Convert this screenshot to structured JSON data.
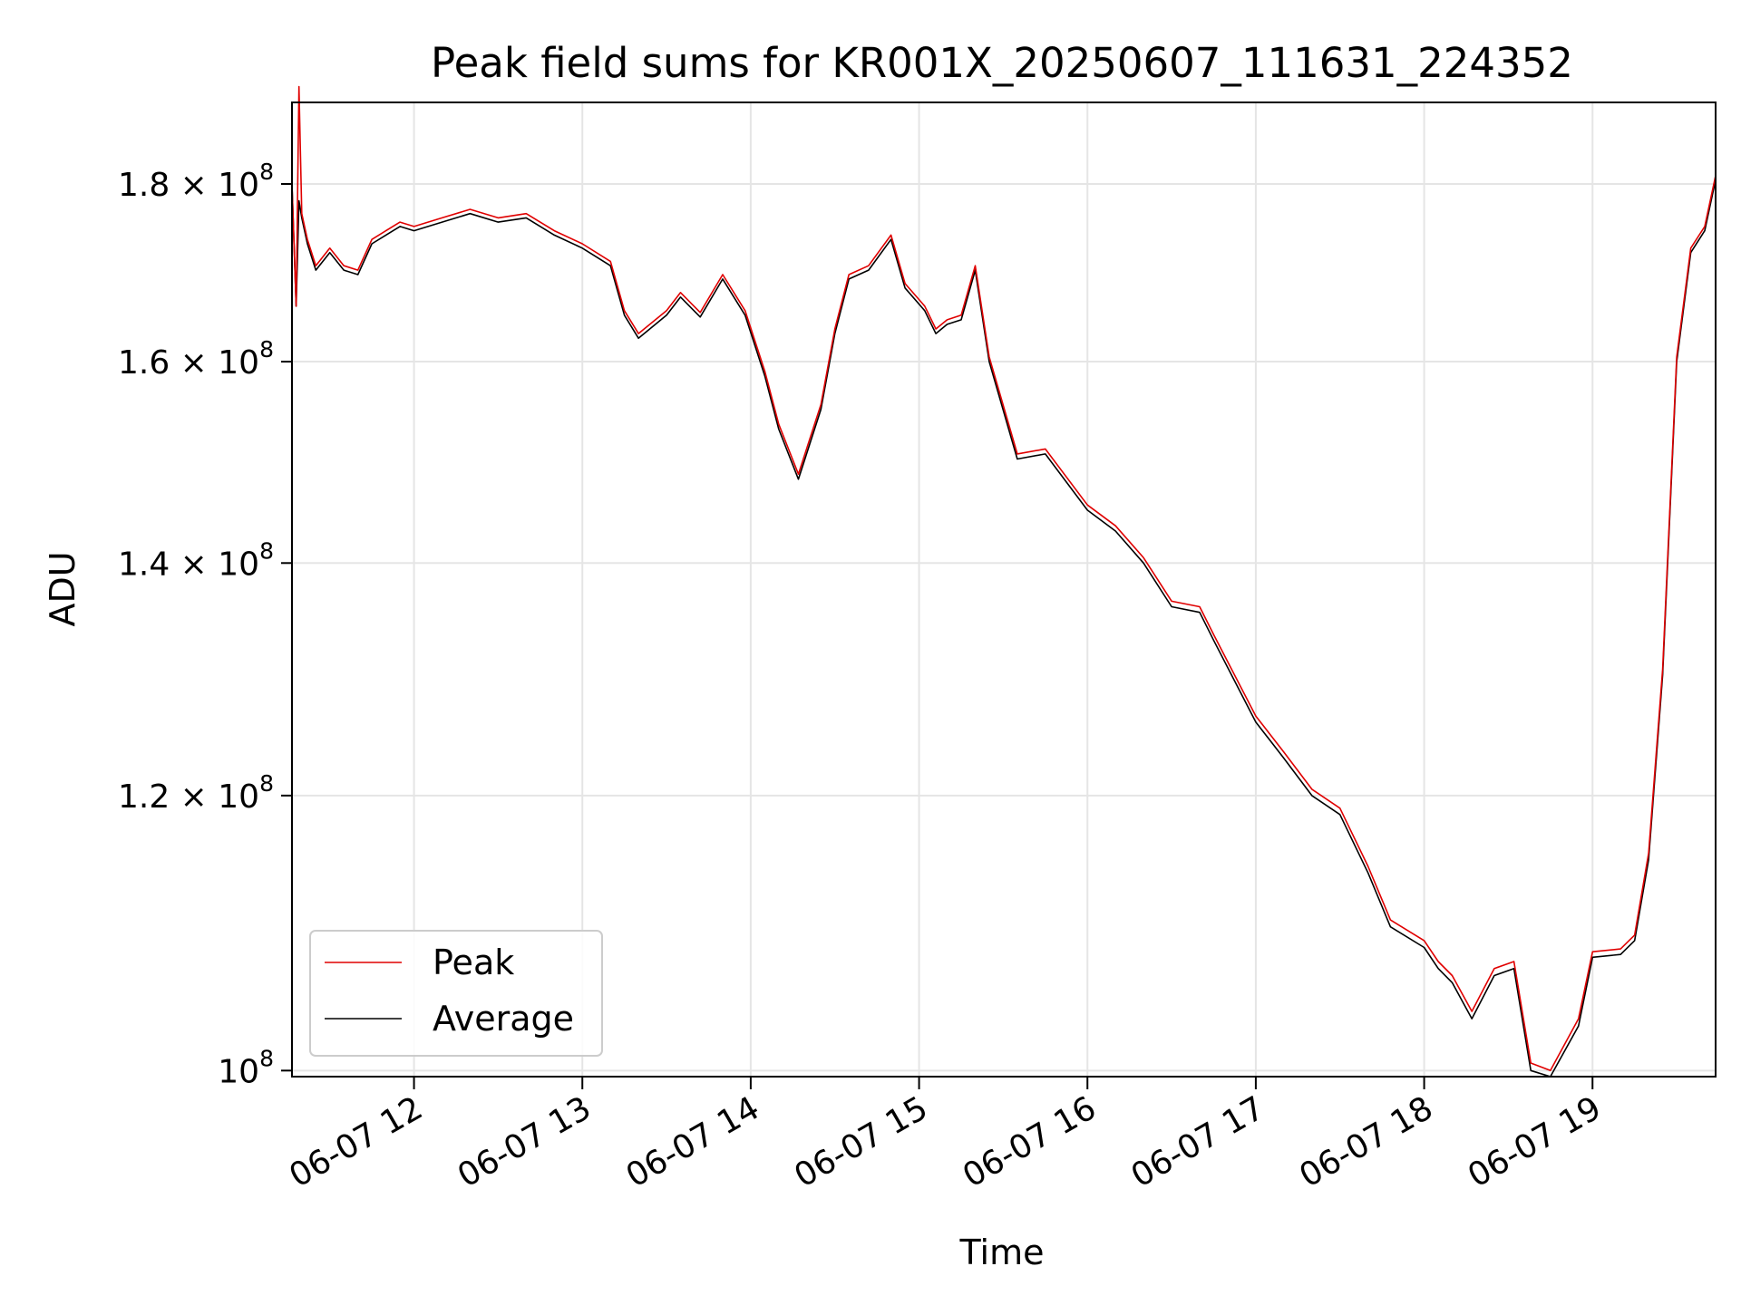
{
  "chart_data": {
    "type": "line",
    "title": "Peak field sums for KR001X_20250607_111631_224352",
    "xlabel": "Time",
    "ylabel": "ADU",
    "y_scale": "log",
    "xlim": [
      "2025-06-07 11:16:31",
      "2025-06-07 19:43:52"
    ],
    "ylim": [
      99600000,
      190000000
    ],
    "grid": true,
    "legend_position": "lower-left",
    "x_ticks": [
      {
        "value": "2025-06-07 12:00",
        "label": "06-07 12"
      },
      {
        "value": "2025-06-07 13:00",
        "label": "06-07 13"
      },
      {
        "value": "2025-06-07 14:00",
        "label": "06-07 14"
      },
      {
        "value": "2025-06-07 15:00",
        "label": "06-07 15"
      },
      {
        "value": "2025-06-07 16:00",
        "label": "06-07 16"
      },
      {
        "value": "2025-06-07 17:00",
        "label": "06-07 17"
      },
      {
        "value": "2025-06-07 18:00",
        "label": "06-07 18"
      },
      {
        "value": "2025-06-07 19:00",
        "label": "06-07 19"
      }
    ],
    "y_ticks": [
      {
        "value": 100000000,
        "mantissa": "",
        "base": "10",
        "exp": "8"
      },
      {
        "value": 120000000,
        "mantissa": "1.2 × ",
        "base": "10",
        "exp": "8"
      },
      {
        "value": 140000000,
        "mantissa": "1.4 × ",
        "base": "10",
        "exp": "8"
      },
      {
        "value": 160000000,
        "mantissa": "1.6 × ",
        "base": "10",
        "exp": "8"
      },
      {
        "value": 180000000,
        "mantissa": "1.8 × ",
        "base": "10",
        "exp": "8"
      }
    ],
    "x": [
      "2025-06-07 11:16:31",
      "2025-06-07 11:18",
      "2025-06-07 11:19",
      "2025-06-07 11:20",
      "2025-06-07 11:22",
      "2025-06-07 11:25",
      "2025-06-07 11:30",
      "2025-06-07 11:35",
      "2025-06-07 11:40",
      "2025-06-07 11:45",
      "2025-06-07 11:50",
      "2025-06-07 11:55",
      "2025-06-07 12:00",
      "2025-06-07 12:10",
      "2025-06-07 12:20",
      "2025-06-07 12:30",
      "2025-06-07 12:40",
      "2025-06-07 12:50",
      "2025-06-07 13:00",
      "2025-06-07 13:10",
      "2025-06-07 13:15",
      "2025-06-07 13:20",
      "2025-06-07 13:30",
      "2025-06-07 13:35",
      "2025-06-07 13:42",
      "2025-06-07 13:50",
      "2025-06-07 13:58",
      "2025-06-07 14:05",
      "2025-06-07 14:10",
      "2025-06-07 14:17",
      "2025-06-07 14:25",
      "2025-06-07 14:30",
      "2025-06-07 14:35",
      "2025-06-07 14:42",
      "2025-06-07 14:50",
      "2025-06-07 14:55",
      "2025-06-07 15:02",
      "2025-06-07 15:06",
      "2025-06-07 15:10",
      "2025-06-07 15:15",
      "2025-06-07 15:20",
      "2025-06-07 15:25",
      "2025-06-07 15:35",
      "2025-06-07 15:45",
      "2025-06-07 16:00",
      "2025-06-07 16:10",
      "2025-06-07 16:20",
      "2025-06-07 16:30",
      "2025-06-07 16:40",
      "2025-06-07 16:45",
      "2025-06-07 17:00",
      "2025-06-07 17:10",
      "2025-06-07 17:20",
      "2025-06-07 17:30",
      "2025-06-07 17:40",
      "2025-06-07 17:48",
      "2025-06-07 18:00",
      "2025-06-07 18:05",
      "2025-06-07 18:10",
      "2025-06-07 18:17",
      "2025-06-07 18:25",
      "2025-06-07 18:32",
      "2025-06-07 18:38",
      "2025-06-07 18:45",
      "2025-06-07 18:55",
      "2025-06-07 19:00",
      "2025-06-07 19:10",
      "2025-06-07 19:15",
      "2025-06-07 19:20",
      "2025-06-07 19:25",
      "2025-06-07 19:30",
      "2025-06-07 19:35",
      "2025-06-07 19:40",
      "2025-06-07 19:43:52"
    ],
    "series": [
      {
        "name": "Average",
        "color": "#000000",
        "values": [
          180000000,
          166000000,
          178000000,
          176000000,
          173000000,
          170000000,
          172000000,
          170000000,
          169500000,
          173000000,
          174000000,
          175000000,
          174500000,
          175500000,
          176500000,
          175500000,
          176000000,
          174000000,
          172500000,
          170500000,
          165000000,
          162500000,
          165000000,
          167000000,
          164800000,
          169000000,
          165000000,
          158500000,
          153000000,
          148000000,
          155000000,
          163000000,
          169000000,
          170000000,
          173500000,
          168000000,
          165500000,
          163000000,
          164000000,
          164500000,
          170000000,
          160000000,
          150000000,
          150500000,
          145000000,
          143000000,
          140000000,
          136000000,
          135500000,
          133000000,
          126000000,
          123000000,
          120000000,
          118500000,
          114000000,
          110000000,
          108500000,
          107000000,
          106000000,
          103500000,
          106500000,
          107000000,
          100000000,
          99600000,
          103000000,
          107800000,
          108000000,
          109000000,
          115000000,
          130000000,
          160000000,
          172000000,
          174500000,
          180500000
        ]
      },
      {
        "name": "Peak",
        "color": "#e00000",
        "values": [
          180000000,
          166000000,
          192000000,
          176500000,
          173500000,
          170500000,
          172500000,
          170500000,
          170000000,
          173500000,
          174500000,
          175500000,
          175000000,
          176000000,
          177000000,
          176000000,
          176500000,
          174500000,
          173000000,
          171000000,
          165500000,
          163000000,
          165500000,
          167500000,
          165300000,
          169500000,
          165500000,
          159000000,
          153500000,
          148500000,
          155500000,
          163500000,
          169500000,
          170500000,
          174000000,
          168500000,
          166000000,
          163500000,
          164500000,
          165000000,
          170500000,
          160500000,
          150500000,
          151000000,
          145500000,
          143500000,
          140500000,
          136500000,
          136000000,
          133500000,
          126500000,
          123500000,
          120500000,
          119000000,
          114500000,
          110500000,
          109000000,
          107500000,
          106500000,
          104000000,
          107000000,
          107500000,
          100500000,
          100000000,
          103500000,
          108200000,
          108400000,
          109400000,
          115500000,
          130500000,
          160500000,
          172500000,
          175000000,
          181000000
        ]
      }
    ]
  }
}
